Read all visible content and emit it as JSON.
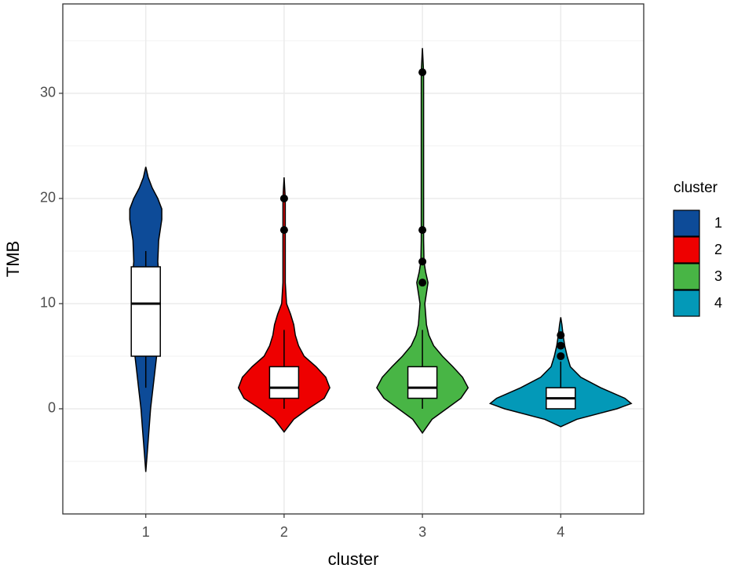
{
  "chart_data": {
    "type": "violin",
    "x_label": "cluster",
    "y_label": "TMB",
    "legend_title": "cluster",
    "categories": [
      "1",
      "2",
      "3",
      "4"
    ],
    "ylim": [
      -10,
      38.5
    ],
    "yticks": [
      0,
      10,
      20,
      30
    ],
    "minor_yticks": [
      -5,
      5,
      15,
      25,
      35
    ],
    "grid": true,
    "series": [
      {
        "name": "1",
        "color": "#0d4b98",
        "violin": {
          "y": [
            -6,
            -4,
            -2,
            0,
            2,
            4,
            6,
            8,
            10,
            12,
            14,
            16,
            18,
            19,
            20,
            21,
            22,
            23
          ],
          "density": [
            0,
            2,
            4,
            6,
            9,
            12,
            15,
            18,
            18,
            17,
            15,
            16,
            20,
            20,
            15,
            8,
            3,
            0
          ]
        },
        "box": {
          "lower": 2,
          "q1": 5,
          "median": 10,
          "q3": 13.5,
          "upper": 15
        },
        "outliers": []
      },
      {
        "name": "2",
        "color": "#ee0000",
        "violin": {
          "y": [
            -2.2,
            -1,
            0,
            1,
            2,
            3,
            4,
            5,
            6,
            7,
            8,
            9,
            10,
            12,
            16,
            20,
            22
          ],
          "density": [
            0,
            12,
            30,
            50,
            57,
            52,
            40,
            25,
            18,
            14,
            12,
            8,
            3,
            1.5,
            1.5,
            1.5,
            0
          ]
        },
        "box": {
          "lower": 0,
          "q1": 1,
          "median": 2,
          "q3": 4,
          "upper": 7.5
        },
        "outliers": [
          17,
          20
        ]
      },
      {
        "name": "3",
        "color": "#48b545",
        "violin": {
          "y": [
            -2.3,
            -1,
            0,
            1,
            2,
            3,
            4,
            5,
            6,
            7,
            8,
            9,
            10,
            11,
            12,
            13,
            14,
            16,
            25,
            32,
            34.3
          ],
          "density": [
            0,
            12,
            30,
            48,
            57,
            50,
            38,
            25,
            14,
            8,
            5,
            4,
            3,
            5,
            7,
            4,
            2,
            1.5,
            1.5,
            1.5,
            0
          ]
        },
        "box": {
          "lower": 0,
          "q1": 1,
          "median": 2,
          "q3": 4,
          "upper": 7.5
        },
        "outliers": [
          12,
          14,
          17,
          32
        ]
      },
      {
        "name": "4",
        "color": "#0399b8",
        "violin": {
          "y": [
            -1.7,
            -1,
            0,
            0.5,
            1,
            2,
            3,
            4,
            5,
            6,
            7,
            8,
            8.7
          ],
          "density": [
            0,
            20,
            70,
            88,
            80,
            50,
            25,
            12,
            8,
            5,
            3,
            1.5,
            0
          ]
        },
        "box": {
          "lower": 0,
          "q1": 0,
          "median": 1,
          "q3": 2,
          "upper": 4.5
        },
        "outliers": [
          5,
          6,
          7
        ]
      }
    ]
  }
}
